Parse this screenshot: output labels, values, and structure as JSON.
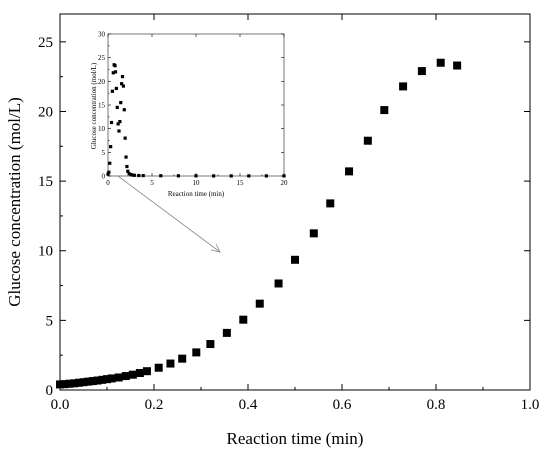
{
  "chart_data": [
    {
      "type": "scatter",
      "title": "",
      "xlabel": "Reaction time (min)",
      "ylabel": "Glucose concentration (mol/L)",
      "xlim": [
        0,
        1.0
      ],
      "ylim": [
        0,
        27
      ],
      "x_ticks": [
        "0.0",
        "0.2",
        "0.4",
        "0.6",
        "0.8",
        "1.0"
      ],
      "y_ticks": [
        "0",
        "5",
        "10",
        "15",
        "20",
        "25"
      ],
      "marker": "square",
      "marker_color": "#000000",
      "grid": false,
      "legend": "none",
      "series": [
        {
          "x": [
            0.0,
            0.01,
            0.02,
            0.03,
            0.04,
            0.05,
            0.06,
            0.07,
            0.08,
            0.09,
            0.1,
            0.11,
            0.125,
            0.14,
            0.155,
            0.17,
            0.185,
            0.21,
            0.235,
            0.26,
            0.29,
            0.32,
            0.355,
            0.39,
            0.425,
            0.465,
            0.5,
            0.54,
            0.575,
            0.615,
            0.655,
            0.69,
            0.73,
            0.77,
            0.81,
            0.845
          ],
          "y": [
            0.4,
            0.42,
            0.45,
            0.48,
            0.52,
            0.56,
            0.6,
            0.64,
            0.68,
            0.73,
            0.78,
            0.83,
            0.9,
            1.0,
            1.1,
            1.22,
            1.35,
            1.6,
            1.9,
            2.25,
            2.7,
            3.3,
            4.1,
            5.05,
            6.2,
            7.65,
            9.35,
            11.25,
            13.4,
            15.7,
            17.9,
            20.1,
            21.8,
            22.9,
            23.5,
            23.3
          ]
        }
      ]
    },
    {
      "type": "scatter",
      "title": "",
      "xlabel": "Reaction time (min)",
      "ylabel": "Glucose concentration (mol/L)",
      "xlim": [
        0,
        20
      ],
      "ylim": [
        0,
        30
      ],
      "x_ticks": [
        "0",
        "5",
        "10",
        "15",
        "20"
      ],
      "y_ticks": [
        "0",
        "5",
        "10",
        "15",
        "20",
        "25",
        "30"
      ],
      "marker": "square",
      "marker_color": "#000000",
      "series": [
        {
          "x": [
            0.0,
            0.1,
            0.2,
            0.3,
            0.4,
            0.5,
            0.6,
            0.7,
            0.8,
            0.85,
            0.95,
            1.05,
            1.15,
            1.25,
            1.35,
            1.45,
            1.55,
            1.65,
            1.75,
            1.85,
            1.95,
            2.05,
            2.15,
            2.25,
            2.4,
            2.6,
            2.8,
            3.0,
            3.5,
            4.0,
            6.0,
            8.0,
            10.0,
            12.0,
            14.0,
            16.0,
            18.0,
            20.0
          ],
          "y": [
            0.4,
            0.8,
            2.7,
            6.2,
            11.3,
            17.9,
            21.8,
            23.5,
            23.3,
            22.0,
            18.5,
            14.5,
            11.0,
            9.5,
            11.5,
            15.5,
            19.5,
            21.0,
            19.0,
            14.0,
            8.0,
            4.0,
            2.0,
            1.0,
            0.5,
            0.3,
            0.2,
            0.15,
            0.1,
            0.08,
            0.05,
            0.04,
            0.03,
            0.02,
            0.02,
            0.02,
            0.02,
            0.02
          ]
        }
      ]
    }
  ]
}
